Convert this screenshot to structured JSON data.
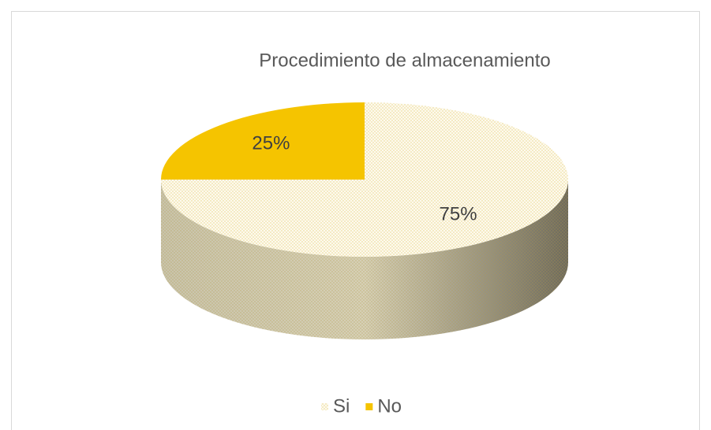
{
  "chart_data": {
    "type": "pie3d",
    "title": "Procedimiento de almacenamiento",
    "categories": [
      "Si",
      "No"
    ],
    "values": [
      75,
      25
    ],
    "value_labels": [
      "75%",
      "25%"
    ],
    "colors": [
      "#f2e3a0",
      "#f5c400"
    ],
    "legend": "bottom"
  }
}
